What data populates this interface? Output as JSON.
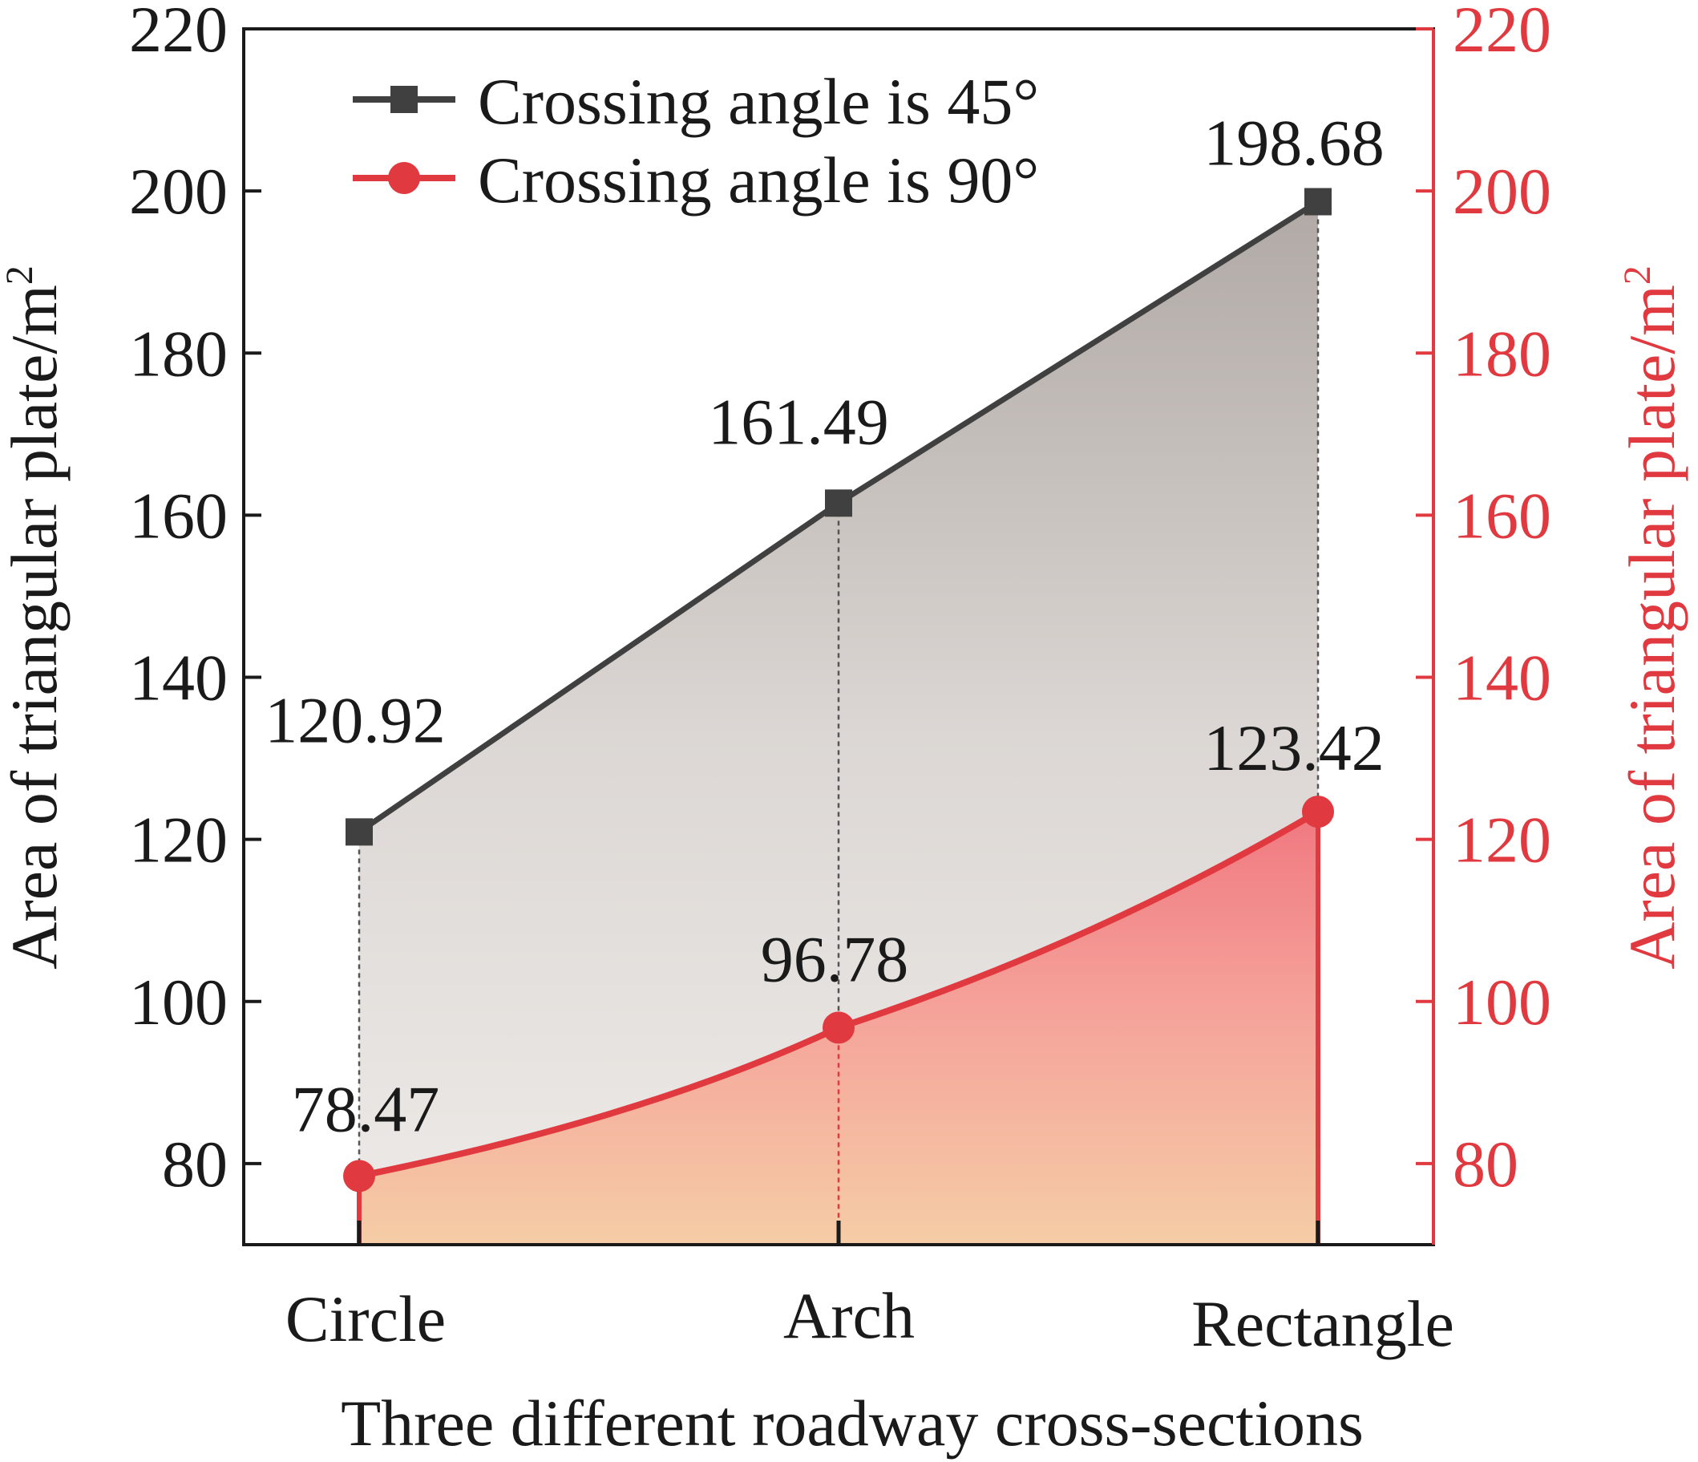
{
  "chart_data": {
    "type": "line",
    "categories": [
      "Circle",
      "Arch",
      "Rectangle"
    ],
    "xlabel": "Three different roadway cross-sections",
    "ylabel_left": "Area of triangular plate/m",
    "ylabel_right": "Area of triangular plate/m",
    "ylabel_superscript": "2",
    "ylim": [
      70,
      220
    ],
    "yticks": [
      80,
      100,
      120,
      140,
      160,
      180,
      200,
      220
    ],
    "series": [
      {
        "name": "Crossing angle is 45°",
        "values": [
          120.92,
          161.49,
          198.68
        ],
        "labels": [
          "120.92",
          "161.49",
          "198.68"
        ],
        "color": "#404040",
        "marker": "square",
        "fill": "gray-gradient"
      },
      {
        "name": "Crossing angle is 90°",
        "values": [
          78.47,
          96.78,
          123.42
        ],
        "labels": [
          "78.47",
          "96.78",
          "123.42"
        ],
        "color": "#e03a40",
        "marker": "circle",
        "fill": "red-orange-gradient"
      }
    ],
    "legend_position": "top-left",
    "grid": false,
    "right_axis_color": "#e03a40"
  }
}
